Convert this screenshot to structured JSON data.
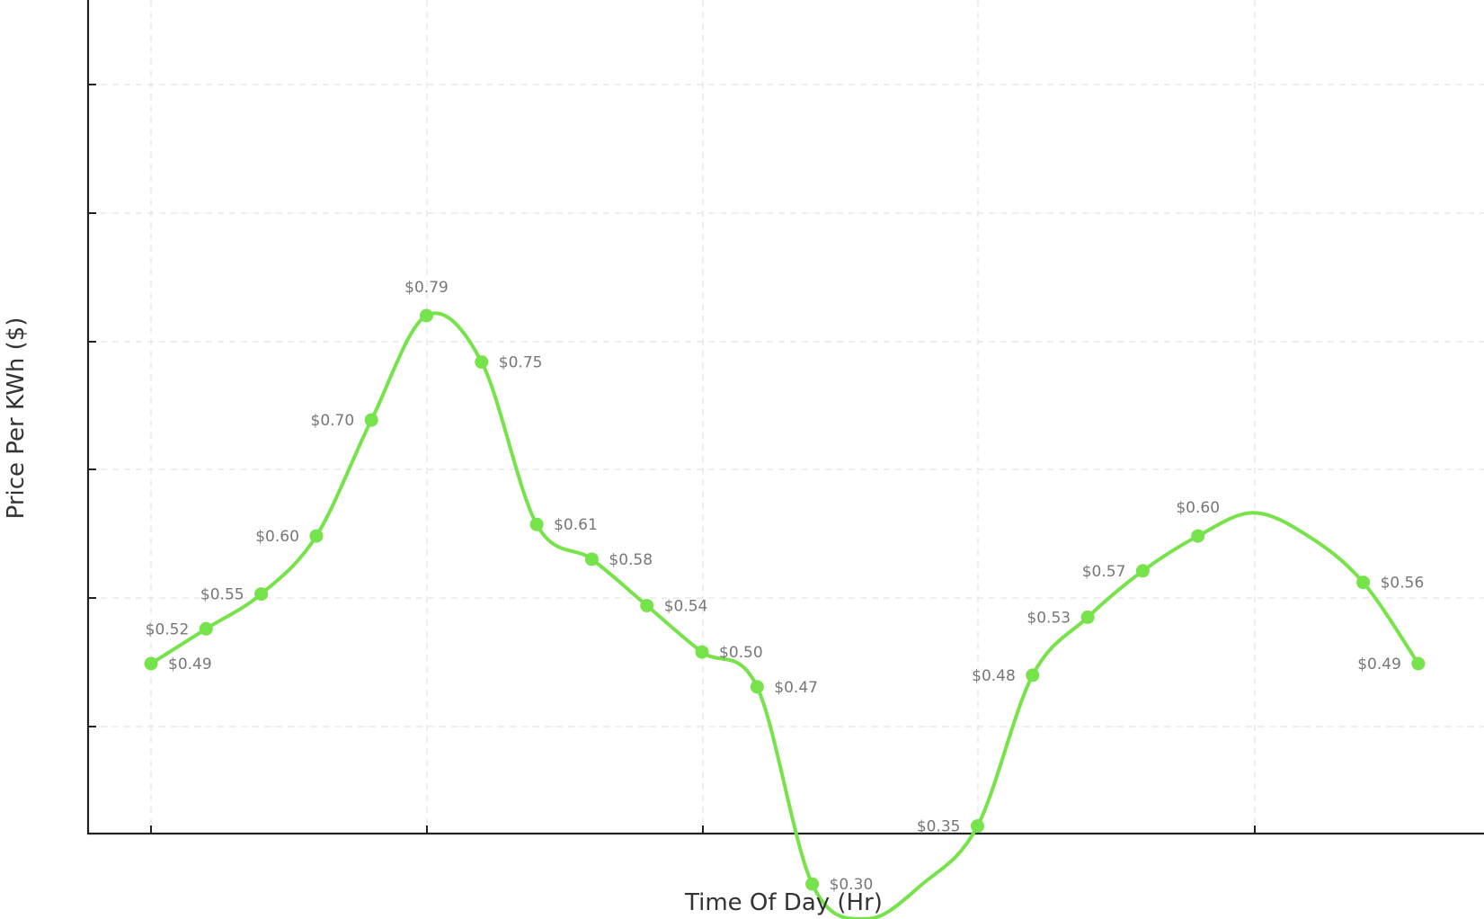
{
  "chart_data": {
    "type": "line",
    "title": "",
    "xlabel": "Time Of Day (Hr)",
    "ylabel": "Price Per KWh ($)",
    "grid": true,
    "color": "#77e34a",
    "x": [
      0,
      1,
      2,
      3,
      4,
      5,
      6,
      7,
      8,
      9,
      10,
      11,
      12,
      13,
      14,
      15,
      16,
      17,
      18,
      19,
      20,
      21,
      22,
      23
    ],
    "series": [
      {
        "values": [
          0.49,
          0.52,
          0.55,
          0.6,
          0.7,
          0.79,
          0.75,
          0.61,
          0.58,
          0.54,
          0.5,
          0.47,
          0.3,
          0.27,
          0.3,
          0.35,
          0.48,
          0.53,
          0.57,
          0.6,
          0.62,
          0.6,
          0.56,
          0.49
        ],
        "labels": [
          "$0.49",
          "$0.52",
          "$0.55",
          "$0.60",
          "$0.70",
          "$0.79",
          "$0.75",
          "$0.61",
          "$0.58",
          "$0.54",
          "$0.50",
          "$0.47",
          "$0.30",
          "",
          "",
          "$0.35",
          "$0.48",
          "$0.53",
          "$0.57",
          "$0.60",
          "",
          "",
          "$0.56",
          "$0.49"
        ],
        "markers": [
          true,
          true,
          true,
          true,
          true,
          true,
          true,
          true,
          true,
          true,
          true,
          true,
          true,
          false,
          false,
          true,
          true,
          true,
          true,
          true,
          false,
          false,
          true,
          true
        ]
      }
    ]
  }
}
